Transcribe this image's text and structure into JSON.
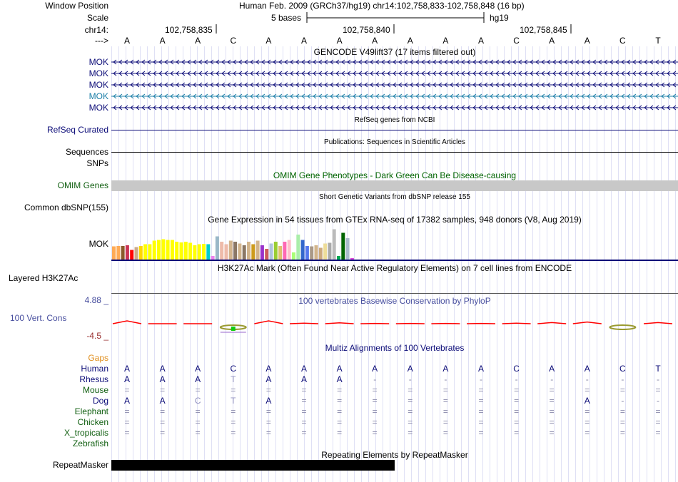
{
  "header": {
    "window_position_label": "Window Position",
    "title": "Human Feb. 2009 (GRCh37/hg19)    chr14:102,758,833-102,758,848 (16 bp)",
    "scale_label": "Scale",
    "scale_text": "5 bases",
    "assembly": "hg19",
    "chrom_label": "chr14:",
    "positions": [
      "102,758,835",
      "102,758,840",
      "102,758,845"
    ],
    "strand_label": "--->"
  },
  "sequence": [
    "A",
    "A",
    "A",
    "C",
    "A",
    "A",
    "A",
    "A",
    "A",
    "A",
    "A",
    "C",
    "A",
    "A",
    "C",
    "T"
  ],
  "tracks": {
    "gencode": {
      "title": "GENCODE V49lift37 (17 items filtered out)",
      "items": [
        "MOK",
        "MOK",
        "MOK",
        "MOK",
        "MOK"
      ],
      "colors": [
        "#0c0c78",
        "#0c0c78",
        "#0c0c78",
        "#1c7fa8",
        "#0c0c78"
      ]
    },
    "refseq": {
      "title": "RefSeq genes from NCBI",
      "label": "RefSeq Curated"
    },
    "publications": {
      "title": "Publications: Sequences in Scientific Articles",
      "label": "Sequences"
    },
    "snps": {
      "label": "SNPs"
    },
    "omim": {
      "title": "OMIM Gene Phenotypes - Dark Green Can Be Disease-causing",
      "label": "OMIM Genes"
    },
    "dbsnp": {
      "title": "Short Genetic Variants from dbSNP release 155",
      "label": "Common dbSNP(155)"
    },
    "gtex": {
      "title": "Gene Expression in 54 tissues from GTEx RNA-seq of 17382 samples, 948 donors (V8, Aug 2019)",
      "label": "MOK",
      "levels": [
        0.37,
        0.38,
        0.38,
        0.4,
        0.27,
        0.35,
        0.38,
        0.43,
        0.43,
        0.53,
        0.55,
        0.57,
        0.55,
        0.55,
        0.5,
        0.48,
        0.5,
        0.47,
        0.4,
        0.43,
        0.44,
        0.43,
        0.1,
        0.65,
        0.5,
        0.43,
        0.53,
        0.5,
        0.45,
        0.4,
        0.5,
        0.43,
        0.53,
        0.4,
        0.3,
        0.45,
        0.5,
        0.38,
        0.5,
        0.55,
        0.2,
        0.7,
        0.55,
        0.38,
        0.37,
        0.4,
        0.33,
        0.45,
        0.47,
        0.85,
        0.1,
        0.75,
        0.6,
        0.04
      ],
      "colors": [
        "#ffaa55",
        "#ffaa55",
        "#8b5a2b",
        "#cc3355",
        "#ff0000",
        "#ccaa88",
        "#ffd700",
        "#ffff00",
        "#ffff00",
        "#ffff00",
        "#ffff00",
        "#ffff00",
        "#ffff00",
        "#ffff00",
        "#ffff00",
        "#ffff00",
        "#ffff00",
        "#ffff00",
        "#ffff00",
        "#ffff00",
        "#ffff00",
        "#00cdcd",
        "#ee82ee",
        "#9ab8c8",
        "#eebbaa",
        "#eebbaa",
        "#d2b48c",
        "#8b7765",
        "#d2b48c",
        "#8b7765",
        "#d2b48c",
        "#cd9b1d",
        "#d2b48c",
        "#9932cc",
        "#cd5c5c",
        "#b0c4de",
        "#9acd32",
        "#e0c070",
        "#ff69b4",
        "#ffc0cb",
        "#aaff77",
        "#aaeeaa",
        "#3366cc",
        "#5577ee",
        "#aa9988",
        "#d2b48c",
        "#cdaa7d",
        "#eedd99",
        "#aaaaaa",
        "#bbbbbb",
        "#00aa55",
        "#006400",
        "#aabbcc",
        "#dd44dd"
      ]
    },
    "h3k27ac": {
      "title": "H3K27Ac Mark (Often Found Near Active Regulatory Elements) on 7 cell lines from ENCODE",
      "label": "Layered H3K27Ac"
    },
    "cons": {
      "title": "100 vertebrates Basewise Conservation by PhyloP",
      "label": "100 Vert. Cons",
      "max_label": "4.88 _",
      "min_label": "-4.5 _"
    },
    "gaps": {
      "label": "Gaps"
    },
    "multiz": {
      "title": "Multiz Alignments of 100 Vertebrates",
      "species": [
        {
          "name": "Human",
          "bases": [
            "A",
            "A",
            "A",
            "C",
            "A",
            "A",
            "A",
            "A",
            "A",
            "A",
            "A",
            "C",
            "A",
            "A",
            "C",
            "T"
          ]
        },
        {
          "name": "Rhesus",
          "bases": [
            "A",
            "A",
            "A",
            "T",
            "A",
            "A",
            "A",
            "-",
            "-",
            "-",
            "-",
            "-",
            "-",
            "-",
            "-",
            "-"
          ]
        },
        {
          "name": "Mouse",
          "bases": [
            "=",
            "=",
            "=",
            "=",
            "=",
            "=",
            "=",
            "=",
            "=",
            "=",
            "=",
            "=",
            "=",
            "=",
            "=",
            "="
          ]
        },
        {
          "name": "Dog",
          "bases": [
            "A",
            "A",
            "C",
            "T",
            "A",
            "=",
            "=",
            "=",
            "=",
            "=",
            "=",
            "=",
            "=",
            "A",
            "-",
            "-"
          ]
        },
        {
          "name": "Elephant",
          "bases": [
            "=",
            "=",
            "=",
            "=",
            "=",
            "=",
            "=",
            "=",
            "=",
            "=",
            "=",
            "=",
            "=",
            "=",
            "=",
            "="
          ]
        },
        {
          "name": "Chicken",
          "bases": [
            "=",
            "=",
            "=",
            "=",
            "=",
            "=",
            "=",
            "=",
            "=",
            "=",
            "=",
            "=",
            "=",
            "=",
            "=",
            "="
          ]
        },
        {
          "name": "X_tropicalis",
          "bases": [
            "=",
            "=",
            "=",
            "=",
            "=",
            "=",
            "=",
            "=",
            "=",
            "=",
            "=",
            "=",
            "=",
            "=",
            "=",
            "="
          ]
        },
        {
          "name": "Zebrafish",
          "bases": []
        }
      ]
    },
    "repeatmasker": {
      "title": "Repeating Elements by RepeatMasker",
      "label": "RepeatMasker",
      "coverage_bases": 8
    }
  },
  "colors": {
    "navy": "#0c0c78",
    "green_label": "#126012",
    "omim_label": "#006400",
    "orange_label": "#e09020",
    "cons_label": "#474e9e",
    "omim_bar": "#c8c8c8",
    "cons_positive": "#ff0000",
    "cons_negative": "#9966cc",
    "highlight_green": "#11cc11",
    "olive": "#9a9a30"
  }
}
